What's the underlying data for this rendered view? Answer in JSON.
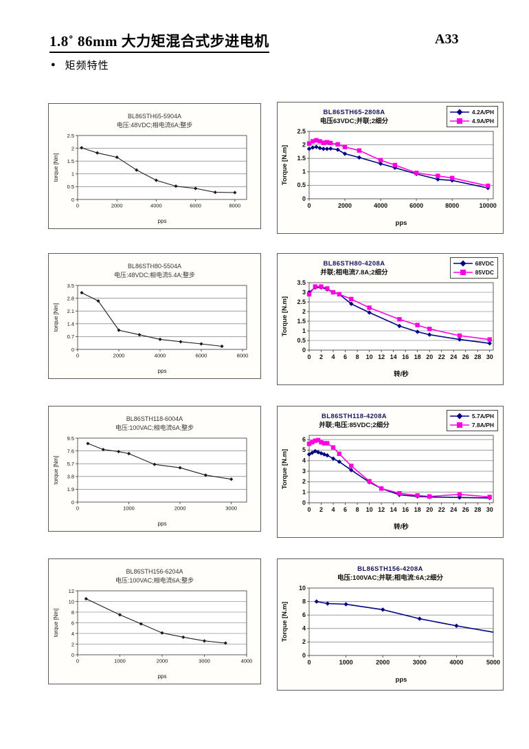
{
  "page": {
    "title": "1.8˚ 86mm 大力矩混合式步进电机",
    "page_number": "A33",
    "bullet_glyph": "●",
    "section": "矩频特性"
  },
  "colors": {
    "series_navy": "#000080",
    "series_magenta": "#ff00e0",
    "series_black": "#1a1a1a",
    "grid": "#666666"
  },
  "chart_data": [
    {
      "type": "line",
      "title": "BL86STH65-5904A",
      "subtitle": "电压:48VDC;相电流6A;整步",
      "xlabel": "pps",
      "ylabel": "torque [Nm]",
      "xlim": [
        0,
        8600
      ],
      "ylim": [
        0,
        2.5
      ],
      "xticks": [
        0,
        2000,
        4000,
        6000,
        8000
      ],
      "yticks": [
        0,
        0.5,
        1,
        1.5,
        2,
        2.5
      ],
      "grid": "horizontal",
      "legend_position": "none",
      "series": [
        {
          "name": "",
          "color": "#1a1a1a",
          "marker": "diamond",
          "x": [
            200,
            1000,
            2000,
            3000,
            4000,
            5000,
            6000,
            7000,
            8000
          ],
          "y": [
            2.02,
            1.82,
            1.65,
            1.15,
            0.75,
            0.52,
            0.43,
            0.28,
            0.27
          ]
        }
      ]
    },
    {
      "type": "line",
      "title": "BL86STH65-2808A",
      "subtitle": "电压63VDC;并联;2细分",
      "xlabel": "pps",
      "ylabel": "Torque [N.m]",
      "xlim": [
        0,
        10300
      ],
      "ylim": [
        0,
        2.5
      ],
      "xticks": [
        0,
        2000,
        4000,
        6000,
        8000,
        10000
      ],
      "yticks": [
        0,
        0.5,
        1,
        1.5,
        2,
        2.5
      ],
      "grid": "horizontal",
      "legend_position": "top-right",
      "series": [
        {
          "name": "4.2A/PH",
          "color": "#000080",
          "marker": "diamond",
          "x": [
            0,
            200,
            400,
            600,
            800,
            1000,
            1200,
            1600,
            2000,
            2800,
            4000,
            4800,
            6000,
            7200,
            8000,
            10000
          ],
          "y": [
            1.85,
            1.9,
            1.92,
            1.88,
            1.85,
            1.85,
            1.86,
            1.82,
            1.67,
            1.53,
            1.3,
            1.15,
            0.92,
            0.72,
            0.68,
            0.4
          ]
        },
        {
          "name": "4.9A/PH",
          "color": "#ff00e0",
          "marker": "square",
          "x": [
            0,
            200,
            400,
            600,
            800,
            1000,
            1200,
            1600,
            2000,
            2800,
            4000,
            4800,
            6000,
            7200,
            8000,
            10000
          ],
          "y": [
            2.05,
            2.13,
            2.17,
            2.13,
            2.08,
            2.1,
            2.07,
            2.02,
            1.92,
            1.79,
            1.43,
            1.25,
            0.96,
            0.85,
            0.77,
            0.48
          ]
        }
      ]
    },
    {
      "type": "line",
      "title": "BL86STH80-5504A",
      "subtitle": "电压:48VDC;相电流5.4A;整步",
      "xlabel": "pps",
      "ylabel": "torque [Nm]",
      "xlim": [
        0,
        8200
      ],
      "ylim": [
        0,
        3.5
      ],
      "xticks": [
        0,
        2000,
        4000,
        6000,
        8000
      ],
      "yticks": [
        0,
        0.7,
        1.4,
        2.1,
        2.8,
        3.5
      ],
      "grid": "horizontal",
      "legend_position": "none",
      "series": [
        {
          "name": "",
          "color": "#1a1a1a",
          "marker": "diamond",
          "x": [
            200,
            1000,
            2000,
            3000,
            4000,
            5000,
            6000,
            7000
          ],
          "y": [
            3.1,
            2.65,
            1.05,
            0.8,
            0.55,
            0.42,
            0.3,
            0.17
          ]
        }
      ]
    },
    {
      "type": "line",
      "title": "BL86STH80-4208A",
      "subtitle": "并联;相电流7.8A;2细分",
      "xlabel": "转/秒",
      "ylabel": "Torque [N.m]",
      "xlim": [
        0,
        30.6
      ],
      "ylim": [
        0,
        3.5
      ],
      "xticks": [
        0,
        2,
        4,
        6,
        8,
        10,
        12,
        14,
        16,
        18,
        20,
        22,
        24,
        26,
        28,
        30
      ],
      "yticks": [
        0,
        0.5,
        1,
        1.5,
        2,
        2.5,
        3,
        3.5
      ],
      "grid": "horizontal",
      "legend_position": "top-right",
      "series": [
        {
          "name": "68VDC",
          "color": "#000080",
          "marker": "diamond",
          "x": [
            0,
            1,
            2,
            3,
            4,
            5,
            7,
            10,
            15,
            18,
            20,
            25,
            30
          ],
          "y": [
            3.0,
            3.25,
            3.25,
            3.15,
            3.0,
            2.9,
            2.4,
            1.95,
            1.25,
            0.95,
            0.8,
            0.55,
            0.35
          ]
        },
        {
          "name": "85VDC",
          "color": "#ff00e0",
          "marker": "square",
          "x": [
            0,
            1,
            2,
            3,
            4,
            5,
            7,
            10,
            15,
            18,
            20,
            25,
            30
          ],
          "y": [
            2.9,
            3.3,
            3.3,
            3.2,
            3.0,
            2.9,
            2.65,
            2.2,
            1.6,
            1.3,
            1.1,
            0.75,
            0.55
          ]
        }
      ]
    },
    {
      "type": "line",
      "title": "BL86STH118-6004A",
      "subtitle": "电压:100VAC;相电流6A;整步",
      "xlabel": "pps",
      "ylabel": "torque [Nm]",
      "xlim": [
        0,
        3300
      ],
      "ylim": [
        0,
        9.5
      ],
      "xticks": [
        0,
        1000,
        2000,
        3000
      ],
      "yticks": [
        0,
        1.9,
        3.8,
        5.7,
        7.6,
        9.5
      ],
      "grid": "horizontal",
      "legend_position": "none",
      "series": [
        {
          "name": "",
          "color": "#1a1a1a",
          "marker": "diamond",
          "x": [
            200,
            500,
            800,
            1000,
            1500,
            2000,
            2500,
            3000
          ],
          "y": [
            8.7,
            7.8,
            7.5,
            7.2,
            5.6,
            5.1,
            4.0,
            3.4
          ]
        }
      ]
    },
    {
      "type": "line",
      "title": "BL86STH118-4208A",
      "subtitle": "并联;电压:85VDC;2细分",
      "xlabel": "转/秒",
      "ylabel": "Torque [N.m]",
      "xlim": [
        0,
        30.6
      ],
      "ylim": [
        0,
        6.4
      ],
      "xticks": [
        0,
        2,
        4,
        6,
        8,
        10,
        12,
        14,
        16,
        18,
        20,
        22,
        24,
        26,
        28,
        30
      ],
      "yticks": [
        0,
        1,
        2,
        3,
        4,
        5,
        6
      ],
      "grid": "horizontal",
      "legend_position": "top-right",
      "series": [
        {
          "name": "5.7A/PH",
          "color": "#000080",
          "marker": "diamond",
          "x": [
            0,
            0.5,
            1,
            1.5,
            2,
            2.5,
            3,
            4,
            5,
            7,
            10,
            12,
            15,
            18,
            20,
            25,
            30
          ],
          "y": [
            4.6,
            4.75,
            4.9,
            4.8,
            4.7,
            4.6,
            4.5,
            4.2,
            3.9,
            3.1,
            1.95,
            1.35,
            0.75,
            0.6,
            0.55,
            0.5,
            0.45
          ]
        },
        {
          "name": "7.8A/PH",
          "color": "#ff00e0",
          "marker": "square",
          "x": [
            0,
            0.5,
            1,
            1.5,
            2,
            2.5,
            3,
            4,
            5,
            7,
            10,
            12,
            15,
            18,
            20,
            25,
            30
          ],
          "y": [
            5.6,
            5.75,
            5.9,
            5.95,
            5.75,
            5.65,
            5.65,
            5.25,
            4.65,
            3.5,
            2.05,
            1.35,
            0.9,
            0.7,
            0.6,
            0.8,
            0.55
          ]
        }
      ]
    },
    {
      "type": "line",
      "title": "BL86STH156-6204A",
      "subtitle": "电压:100VAC;相电流6A;整步",
      "xlabel": "pps",
      "ylabel": "torque [Nm]",
      "xlim": [
        0,
        4000
      ],
      "ylim": [
        0,
        12
      ],
      "xticks": [
        0,
        1000,
        2000,
        3000,
        4000
      ],
      "yticks": [
        0,
        2,
        4,
        6,
        8,
        10,
        12
      ],
      "grid": "horizontal",
      "legend_position": "none",
      "series": [
        {
          "name": "",
          "color": "#1a1a1a",
          "marker": "diamond",
          "x": [
            200,
            1000,
            1500,
            2000,
            2500,
            3000,
            3500
          ],
          "y": [
            10.5,
            7.5,
            5.8,
            4.1,
            3.3,
            2.6,
            2.2
          ]
        }
      ]
    },
    {
      "type": "line",
      "title": "BL86STH156-4208A",
      "subtitle": "电压:100VAC;并联;相电流:6A;2细分",
      "xlabel": "pps",
      "ylabel": "Torque [N.m]",
      "xlim": [
        0,
        5000
      ],
      "ylim": [
        0,
        10
      ],
      "xticks": [
        0,
        1000,
        2000,
        3000,
        4000,
        5000
      ],
      "yticks": [
        0,
        2,
        4,
        6,
        8,
        10
      ],
      "grid": "horizontal",
      "legend_position": "none",
      "series": [
        {
          "name": "",
          "color": "#000080",
          "marker": "diamond",
          "last_no_marker": true,
          "x": [
            200,
            500,
            1000,
            2000,
            3000,
            4000,
            5000
          ],
          "y": [
            8.0,
            7.7,
            7.6,
            6.8,
            5.45,
            4.4,
            3.45
          ]
        }
      ]
    }
  ]
}
